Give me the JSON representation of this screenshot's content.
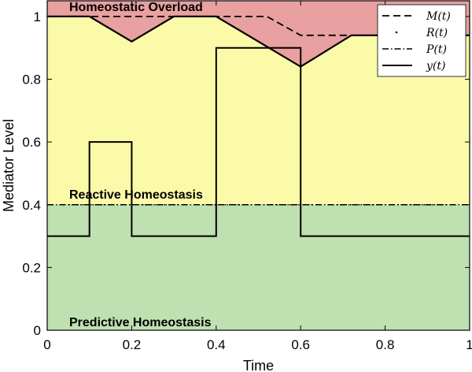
{
  "chart_data": {
    "type": "line",
    "title": "",
    "xlabel": "Time",
    "ylabel": "Mediator Level",
    "xlim": [
      0,
      1
    ],
    "ylim": [
      0,
      1.05
    ],
    "x_ticks": [
      0,
      0.2,
      0.4,
      0.6,
      0.8,
      1
    ],
    "x_tick_labels": [
      "0",
      "0.2",
      "0.4",
      "0.6",
      "0.8",
      "1"
    ],
    "y_ticks": [
      0,
      0.2,
      0.4,
      0.6,
      0.8,
      1
    ],
    "y_tick_labels": [
      "0",
      "0.2",
      "0.4",
      "0.6",
      "0.8",
      "1"
    ],
    "grid": false,
    "legend_position": "top-right",
    "regions": [
      {
        "label": "Homeostatic Overload",
        "color": "#e8a0a0"
      },
      {
        "label": "Reactive Homeostasis",
        "color": "#fafaa8"
      },
      {
        "label": "Predictive Homeostasis",
        "color": "#bfe0b0"
      }
    ],
    "series": [
      {
        "name": "M(t)",
        "style": "dashed",
        "x": [
          0,
          0.1,
          0.2,
          0.3,
          0.4,
          0.52,
          0.6,
          0.72,
          1
        ],
        "y": [
          1,
          1,
          1,
          1,
          1,
          1,
          0.94,
          0.94,
          0.94
        ]
      },
      {
        "name": "R(t)",
        "style": "dotted",
        "x": [
          0,
          1
        ],
        "y": [
          0.4,
          0.4
        ]
      },
      {
        "name": "P(t)",
        "style": "dash-dot",
        "x": [
          0,
          1
        ],
        "y": [
          0.4,
          0.4
        ]
      },
      {
        "name": "y(t)",
        "style": "solid",
        "x": [
          0,
          0.1,
          0.1,
          0.2,
          0.2,
          0.4,
          0.4,
          0.6,
          0.6,
          1
        ],
        "y": [
          0.3,
          0.3,
          0.6,
          0.6,
          0.3,
          0.3,
          0.9,
          0.9,
          0.3,
          0.3
        ]
      }
    ],
    "overload_boundary": {
      "x": [
        0,
        0.1,
        0.2,
        0.3,
        0.4,
        0.6,
        0.72,
        1
      ],
      "y": [
        1,
        1,
        0.92,
        1,
        1,
        0.84,
        0.94,
        0.94
      ]
    },
    "predictive_boundary": 0.4
  }
}
